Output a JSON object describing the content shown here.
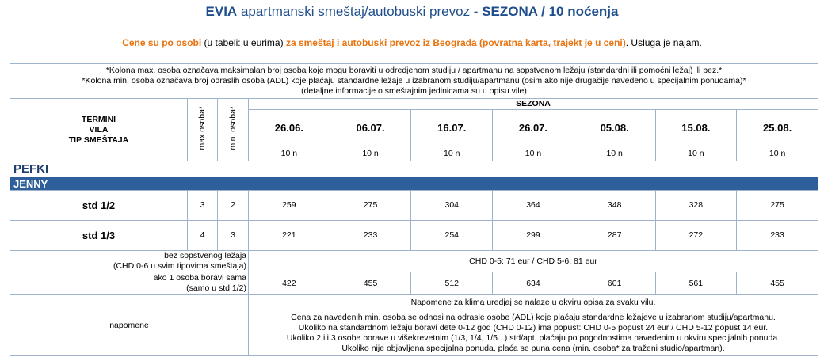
{
  "header": {
    "title_bold": "EVIA",
    "title_rest": "apartmanski smeštaj/autobuski prevoz -",
    "title_season": "SEZONA / 10 noćenja"
  },
  "subtitle": {
    "part1": "Cene su po osobi",
    "part2": "(u tabeli: u eurima)",
    "part3": "za smeštaj i autobuski prevoz iz Beograda (povratna karta, trajekt je u ceni)",
    "part4": ". Usluga je najam."
  },
  "table": {
    "notes": [
      "*Kolona max. osoba označava maksimalan broj osoba koje mogu boraviti u odredjenom studiju / apartmanu na sopstvenom ležaju (standardni ili pomoćni ležaj) ili bez.*",
      "*Kolona min. osoba označava broj odraslih osoba (ADL) koje plaćaju standardne ležaje u izabranom studiju/apartmanu (osim ako nije drugačije navedeno u specijalnim ponudama)*",
      "(detaljne informacije o smeštajnim jedinicama su u opisu vile)"
    ],
    "head_labels": [
      "TERMINI",
      "VILA",
      "TIP SMEŠTAJA"
    ],
    "max_label": "max.osoba*",
    "min_label": "min. osoba*",
    "season": "SEZONA",
    "dates": [
      "26.06.",
      "06.07.",
      "16.07.",
      "26.07.",
      "05.08.",
      "15.08.",
      "25.08."
    ],
    "nights": [
      "10 n",
      "10 n",
      "10 n",
      "10 n",
      "10 n",
      "10 n",
      "10 n"
    ],
    "location": "PEFKI",
    "villa": "JENNY",
    "rows": [
      {
        "type": "std 1/2",
        "max": 3,
        "min": 2,
        "prices": [
          259,
          275,
          304,
          364,
          348,
          328,
          275
        ]
      },
      {
        "type": "std 1/3",
        "max": 4,
        "min": 3,
        "prices": [
          221,
          233,
          254,
          299,
          287,
          272,
          233
        ]
      }
    ],
    "no_bed": {
      "label": [
        "bez sopstvenog ležaja",
        "(CHD 0-6 u svim tipovima smeštaja)"
      ],
      "text": "CHD 0-5: 71 eur / CHD 5-6: 81 eur"
    },
    "single": {
      "label": [
        "ako 1 osoba boravi sama",
        "(samo u std 1/2)"
      ],
      "prices": [
        422,
        455,
        512,
        634,
        601,
        561,
        455
      ]
    },
    "remarks": {
      "label": "napomene",
      "first": "Napomene za klima uredjaj se nalaze u okviru opisa za svaku vilu.",
      "lines": [
        "Cena za  navedenih min. osoba se odnosi na odrasle osobe (ADL) koje plaćaju standardne ležajeve u izabranom studiju/apartmanu.",
        "Ukoliko na standardnom ležaju boravi dete 0-12 god (CHD 0-12) ima popust: CHD 0-5 popust 24 eur / CHD 5-12 popust 14 eur.",
        "Ukoliko 2 ili 3 osobe borave u višekrevetnim (1/3, 1/4, 1/5...) std/apt, plaćaju po pogodnostima navedenim u okviru specijalnih ponuda.",
        "Ukoliko nije objavljena specijalna ponuda, plaća se puna cena (min. osoba* za traženi studio/apartman)."
      ]
    }
  }
}
